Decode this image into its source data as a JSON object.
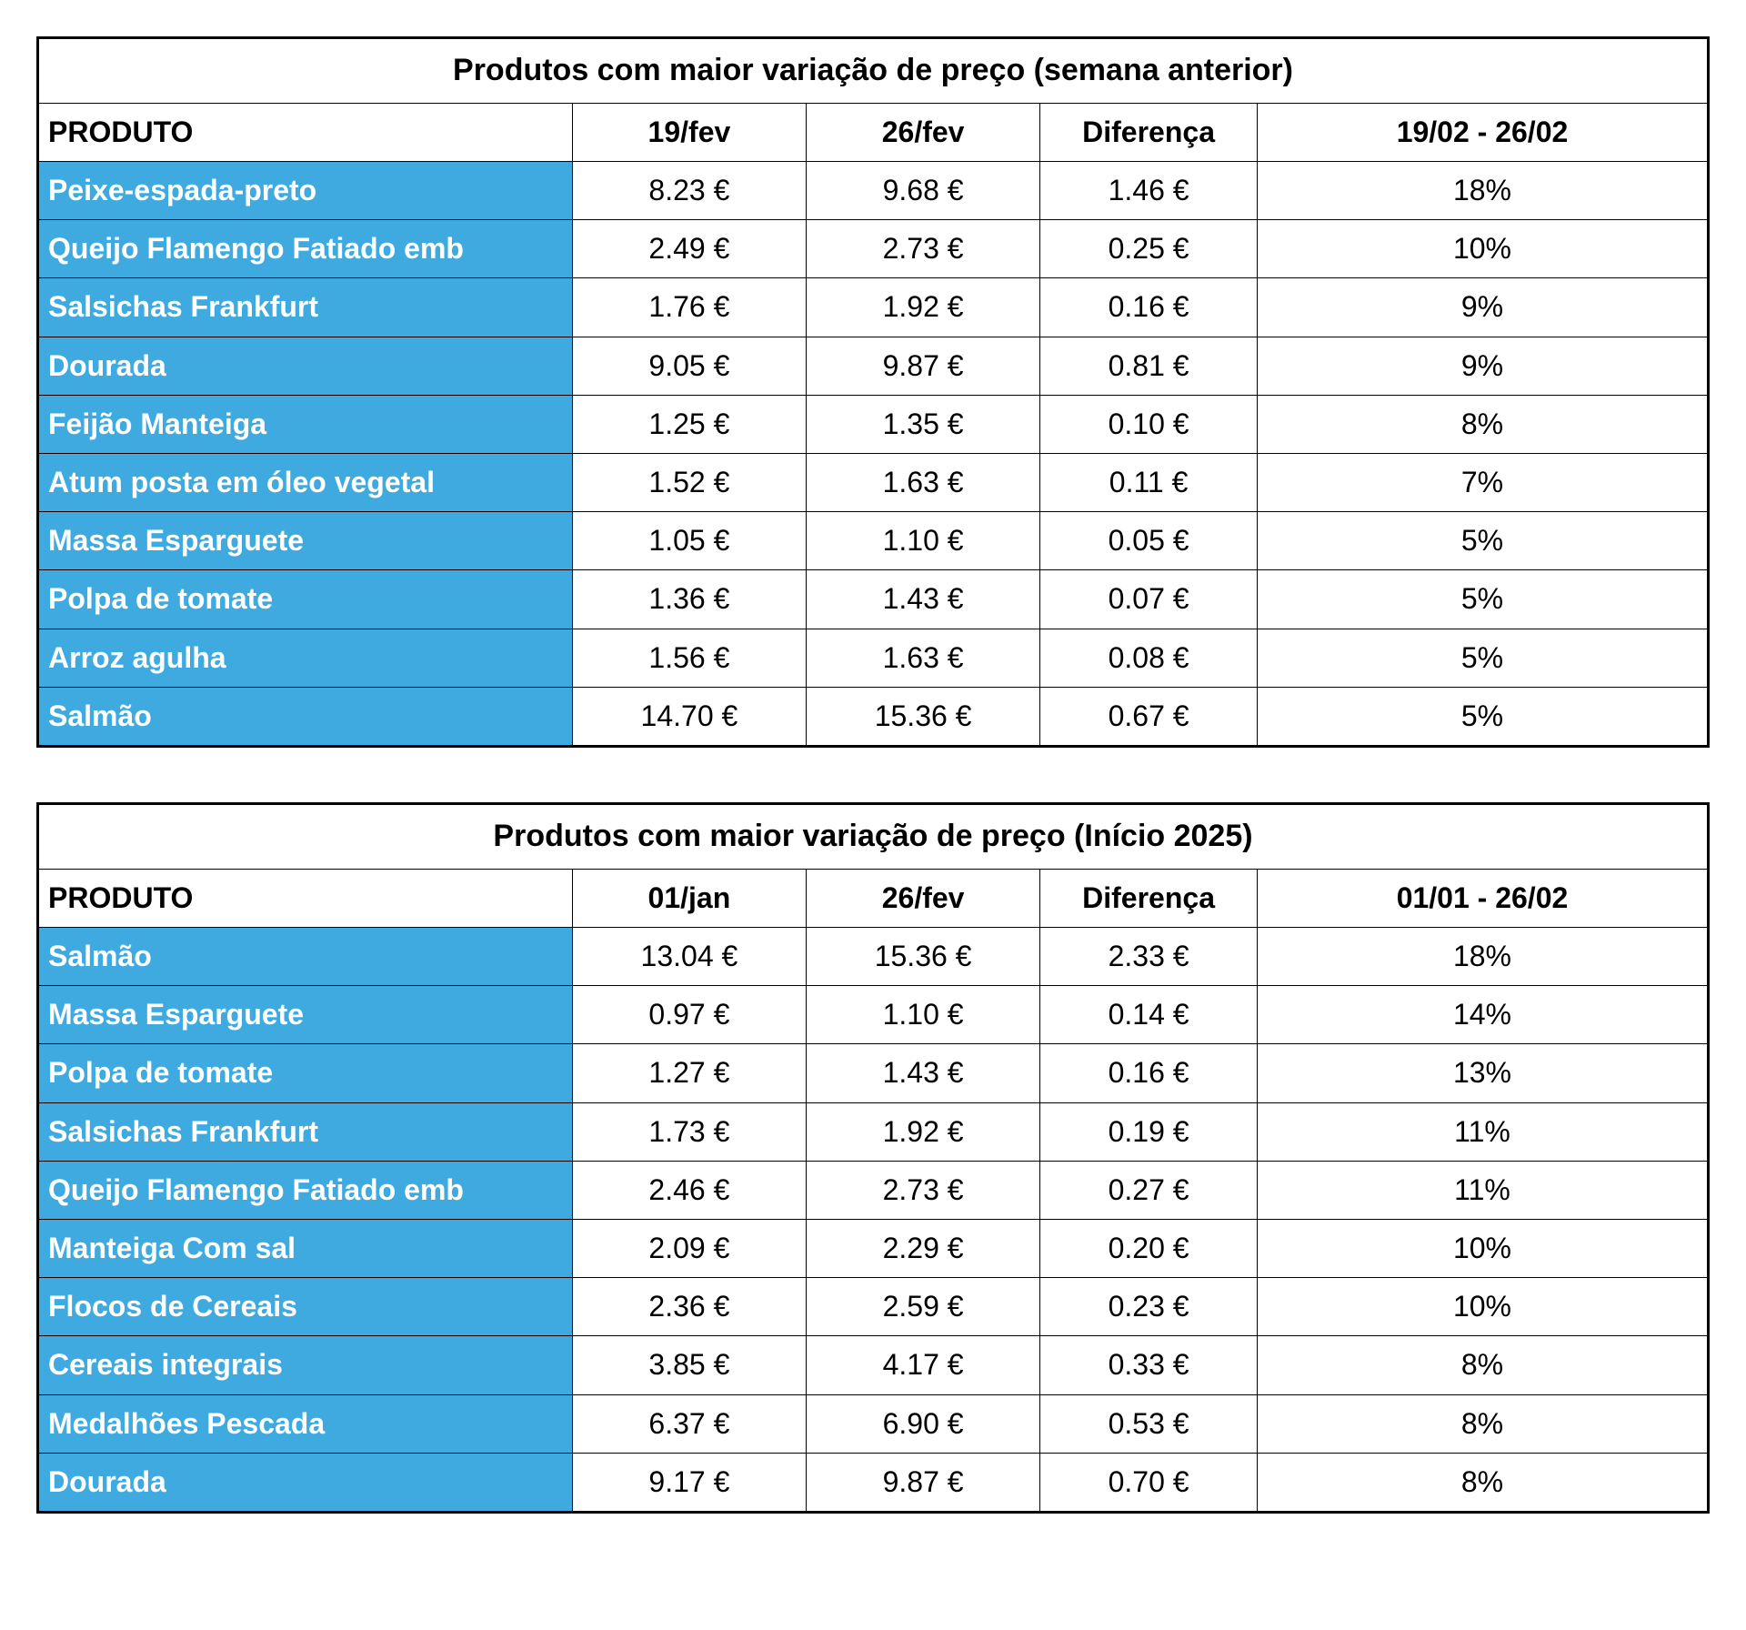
{
  "colors": {
    "product_bg": "#3eaae0",
    "product_text": "#ffffff",
    "border": "#000000",
    "cell_bg": "#ffffff",
    "text": "#000000"
  },
  "tables": [
    {
      "title": "Produtos com maior variação de preço (semana anterior)",
      "columns": [
        "PRODUTO",
        "19/fev",
        "26/fev",
        "Diferença",
        "19/02 - 26/02"
      ],
      "rows": [
        [
          "Peixe-espada-preto",
          "8.23 €",
          "9.68 €",
          "1.46 €",
          "18%"
        ],
        [
          "Queijo Flamengo Fatiado emb",
          "2.49 €",
          "2.73 €",
          "0.25 €",
          "10%"
        ],
        [
          "Salsichas Frankfurt",
          "1.76 €",
          "1.92 €",
          "0.16 €",
          "9%"
        ],
        [
          "Dourada",
          "9.05 €",
          "9.87 €",
          "0.81 €",
          "9%"
        ],
        [
          "Feijão Manteiga",
          "1.25 €",
          "1.35 €",
          "0.10 €",
          "8%"
        ],
        [
          "Atum posta em óleo vegetal",
          "1.52 €",
          "1.63 €",
          "0.11 €",
          "7%"
        ],
        [
          "Massa Esparguete",
          "1.05 €",
          "1.10 €",
          "0.05 €",
          "5%"
        ],
        [
          "Polpa de tomate",
          "1.36 €",
          "1.43 €",
          "0.07 €",
          "5%"
        ],
        [
          "Arroz agulha",
          "1.56 €",
          "1.63 €",
          "0.08 €",
          "5%"
        ],
        [
          "Salmão",
          "14.70 €",
          "15.36 €",
          "0.67 €",
          "5%"
        ]
      ]
    },
    {
      "title": "Produtos com maior variação de preço (Início 2025)",
      "columns": [
        "PRODUTO",
        "01/jan",
        "26/fev",
        "Diferença",
        "01/01 - 26/02"
      ],
      "rows": [
        [
          "Salmão",
          "13.04 €",
          "15.36 €",
          "2.33 €",
          "18%"
        ],
        [
          "Massa Esparguete",
          "0.97 €",
          "1.10 €",
          "0.14 €",
          "14%"
        ],
        [
          "Polpa de tomate",
          "1.27 €",
          "1.43 €",
          "0.16 €",
          "13%"
        ],
        [
          "Salsichas Frankfurt",
          "1.73 €",
          "1.92 €",
          "0.19 €",
          "11%"
        ],
        [
          "Queijo Flamengo Fatiado emb",
          "2.46 €",
          "2.73 €",
          "0.27 €",
          "11%"
        ],
        [
          "Manteiga Com sal",
          "2.09 €",
          "2.29 €",
          "0.20 €",
          "10%"
        ],
        [
          "Flocos de Cereais",
          "2.36 €",
          "2.59 €",
          "0.23 €",
          "10%"
        ],
        [
          "Cereais integrais",
          "3.85 €",
          "4.17 €",
          "0.33 €",
          "8%"
        ],
        [
          "Medalhões Pescada",
          "6.37 €",
          "6.90 €",
          "0.53 €",
          "8%"
        ],
        [
          "Dourada",
          "9.17 €",
          "9.87 €",
          "0.70 €",
          "8%"
        ]
      ]
    }
  ]
}
